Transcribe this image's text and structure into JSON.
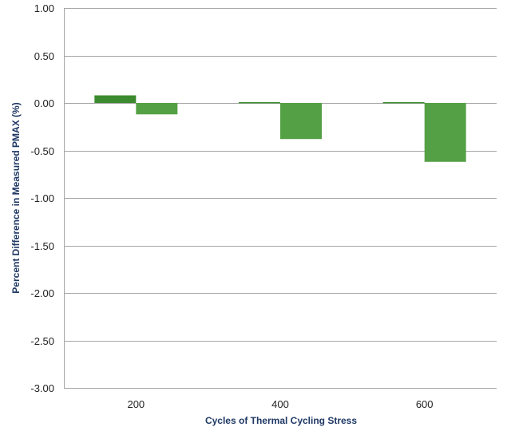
{
  "chart_data": {
    "type": "bar",
    "categories": [
      "200",
      "400",
      "600"
    ],
    "series": [
      {
        "values": [
          0.08,
          0.0,
          0.0
        ],
        "color": "#3c8a2e"
      },
      {
        "values": [
          -0.12,
          -0.38,
          -0.62
        ],
        "color": "#54a045"
      }
    ],
    "xlabel": "Cycles of Thermal Cycling Stress",
    "ylabel": "Percent Difference in Measured PMAX (%)",
    "ylim": [
      -3.0,
      1.0
    ],
    "yticks": [
      "1.00",
      "0.50",
      "0.00",
      "-0.50",
      "-1.00",
      "-1.50",
      "-2.00",
      "-2.50",
      "-3.00"
    ],
    "ytick_values": [
      1.0,
      0.5,
      0.0,
      -0.5,
      -1.0,
      -1.5,
      -2.0,
      -2.5,
      -3.0
    ],
    "grid": true,
    "gridline_color": "#a6a6a6",
    "axis_title_color": "#1f3864"
  }
}
